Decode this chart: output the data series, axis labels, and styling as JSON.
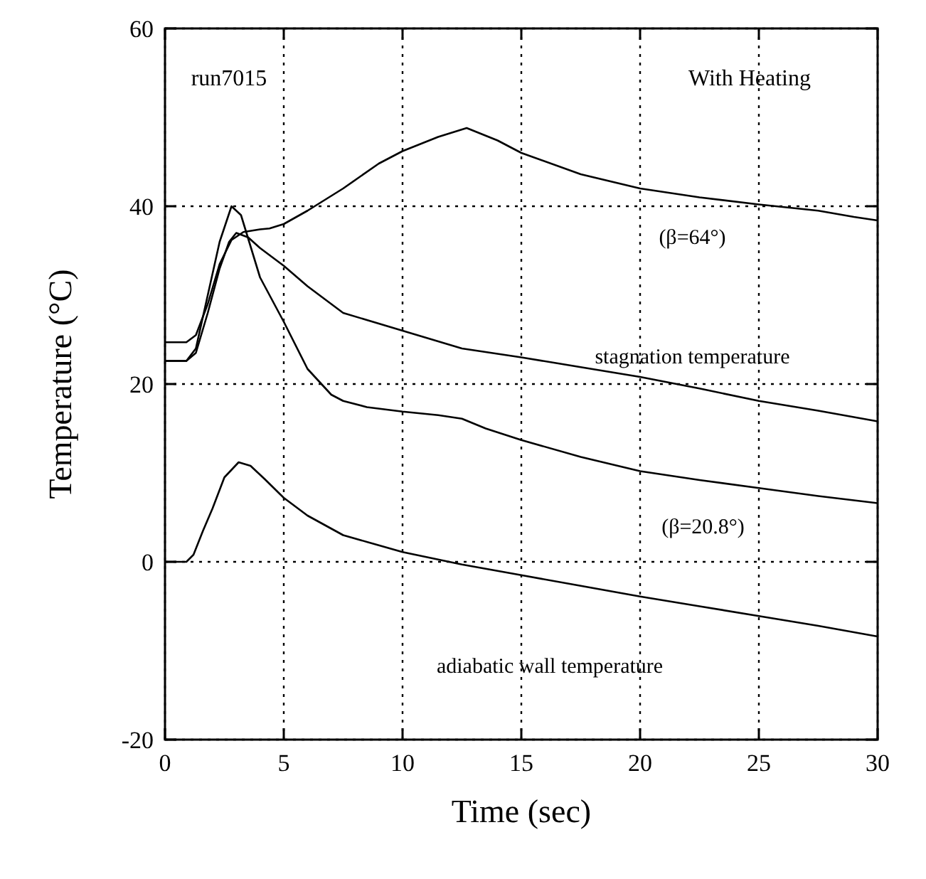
{
  "chart_data": {
    "type": "line",
    "xlabel": "Time (sec)",
    "ylabel": "Temperature (°C)",
    "xlim": [
      0,
      30
    ],
    "ylim": [
      -20,
      60
    ],
    "xticks": [
      0,
      5,
      10,
      15,
      20,
      25,
      30
    ],
    "yticks": [
      -20,
      0,
      20,
      40,
      60
    ],
    "grid": true,
    "line_style": "solid",
    "marker": "none",
    "series": [
      {
        "name": "(β=64°)",
        "color": "#000000",
        "x": [
          0,
          0.9,
          1.3,
          1.8,
          2.3,
          2.8,
          3.3,
          4,
          4.4,
          5,
          6,
          7.5,
          9,
          10,
          11.5,
          12.7,
          14,
          15,
          17.5,
          20,
          22.5,
          25,
          27.5,
          29,
          30
        ],
        "values": [
          24.7,
          24.7,
          25.5,
          29,
          33.5,
          36.2,
          37.1,
          37.4,
          37.5,
          38,
          39.5,
          42,
          44.8,
          46.2,
          47.8,
          48.8,
          47.4,
          46,
          43.6,
          42,
          41,
          40.2,
          39.5,
          38.8,
          38.4
        ]
      },
      {
        "name": "stagnation temperature",
        "color": "#000000",
        "x": [
          0,
          0.9,
          1.3,
          1.8,
          2.3,
          2.7,
          3,
          3.5,
          4,
          5,
          6,
          7.5,
          10,
          12.5,
          15,
          17.5,
          20,
          22.5,
          25,
          27.5,
          30
        ],
        "values": [
          22.6,
          22.6,
          23.5,
          28,
          33,
          36,
          37,
          36.5,
          35.3,
          33.3,
          31,
          28,
          26,
          24,
          23,
          21.9,
          20.8,
          19.5,
          18.1,
          17,
          15.8
        ]
      },
      {
        "name": "(β=20.8°)",
        "color": "#000000",
        "x": [
          0,
          0.9,
          1.3,
          1.8,
          2.3,
          2.8,
          3.2,
          3.6,
          4,
          5,
          6,
          7,
          7.5,
          8.5,
          10,
          11.5,
          12.5,
          13.5,
          15,
          17.5,
          20,
          22.5,
          25,
          27.5,
          30
        ],
        "values": [
          22.6,
          22.6,
          24,
          30,
          36,
          40,
          39,
          35.5,
          32,
          27,
          21.7,
          18.8,
          18.1,
          17.4,
          16.9,
          16.5,
          16.1,
          15,
          13.7,
          11.8,
          10.2,
          9.2,
          8.3,
          7.4,
          6.6
        ]
      },
      {
        "name": "adiabatic wall temperature",
        "color": "#000000",
        "x": [
          0,
          0.9,
          1.2,
          1.6,
          2,
          2.5,
          3.1,
          3.6,
          4.2,
          5,
          6,
          7.5,
          10,
          12.5,
          15,
          17.5,
          20,
          22.5,
          25,
          27.5,
          30
        ],
        "values": [
          0,
          0,
          0.8,
          3.5,
          6,
          9.5,
          11.2,
          10.8,
          9.3,
          7.2,
          5.2,
          3,
          1.1,
          -0.3,
          -1.5,
          -2.7,
          -3.9,
          -5,
          -6.1,
          -7.2,
          -8.4
        ]
      }
    ],
    "annotations": [
      "run7015",
      "With Heating"
    ]
  }
}
